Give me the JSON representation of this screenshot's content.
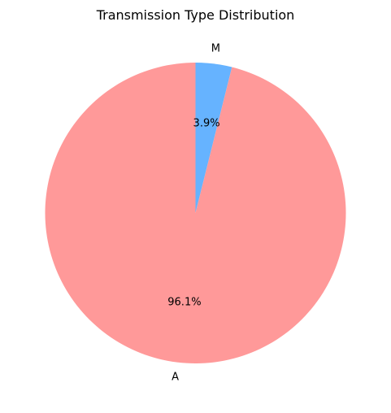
{
  "chart_data": {
    "type": "pie",
    "title": "Transmission Type Distribution",
    "labels": [
      "M",
      "A"
    ],
    "values": [
      3.9,
      96.1
    ],
    "percent_labels": [
      "3.9%",
      "96.1%"
    ],
    "colors": [
      "#66b3ff",
      "#ff9999"
    ],
    "start_angle_deg": 90,
    "direction": "clockwise",
    "legend": "none"
  }
}
